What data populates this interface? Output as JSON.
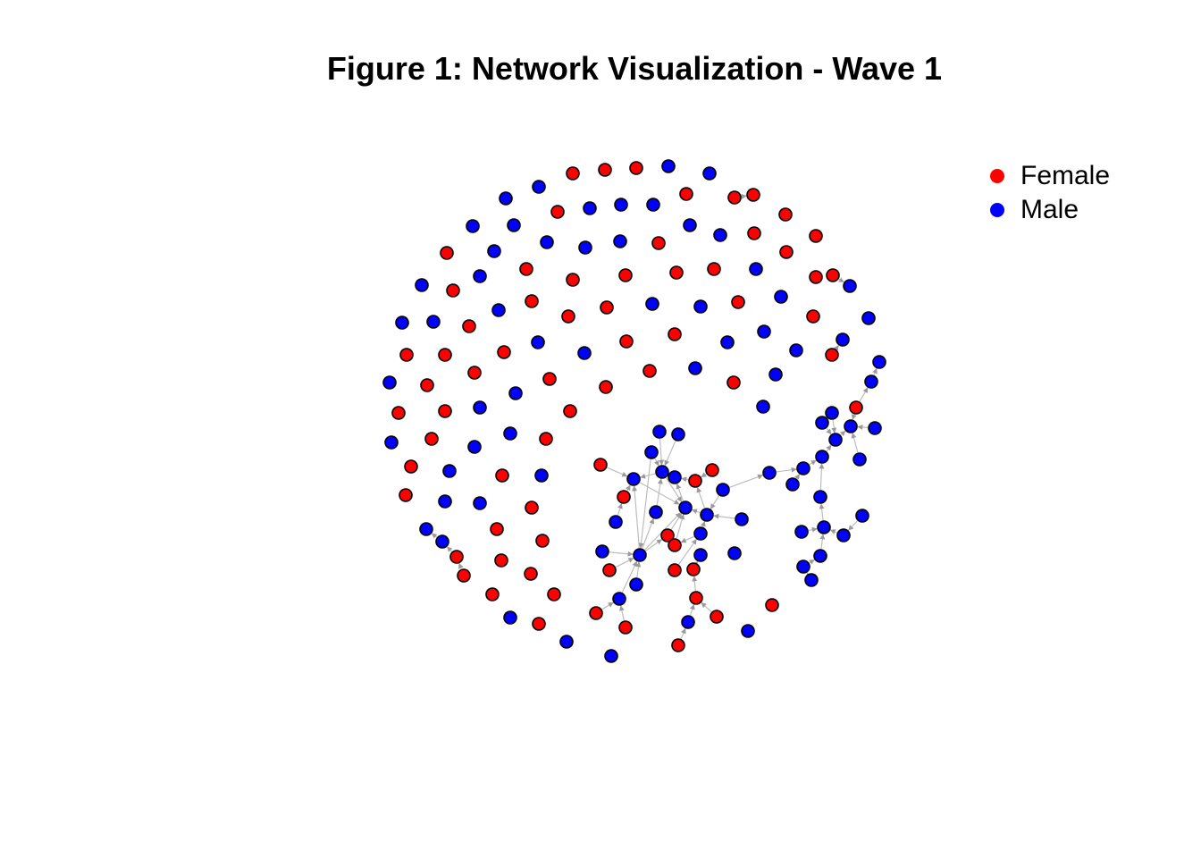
{
  "title": "Figure 1: Network Visualization - Wave 1",
  "legend": [
    {
      "label": "Female",
      "color": "#ff0000"
    },
    {
      "label": "Male",
      "color": "#0000ff"
    }
  ],
  "colors": {
    "Female": "#ff0000",
    "Male": "#0000ff",
    "edge": "#bdbdbd",
    "arrow": "#999999"
  }
}
